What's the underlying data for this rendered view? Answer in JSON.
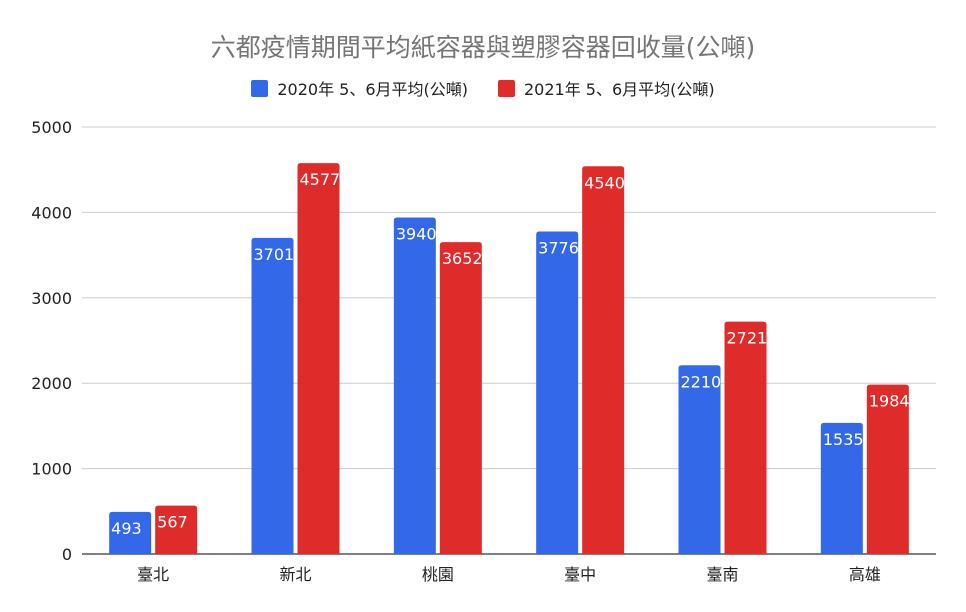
{
  "chart_data": {
    "type": "bar",
    "title": "六都疫情期間平均紙容器與塑膠容器回收量(公噸)",
    "xlabel": "",
    "ylabel": "",
    "categories": [
      "臺北",
      "新北",
      "桃園",
      "臺中",
      "臺南",
      "高雄"
    ],
    "series": [
      {
        "name": "2020年 5、6月平均(公噸)",
        "color": "#3369e8",
        "values": [
          493,
          3701,
          3940,
          3776,
          2210,
          1535
        ]
      },
      {
        "name": "2021年 5、6月平均(公噸)",
        "color": "#e02b2b",
        "values": [
          567,
          4577,
          3652,
          4540,
          2721,
          1984
        ]
      }
    ],
    "ylim": [
      0,
      5000
    ],
    "yticks": [
      0,
      1000,
      2000,
      3000,
      4000,
      5000
    ],
    "grid": true,
    "legend_position": "top-center"
  }
}
